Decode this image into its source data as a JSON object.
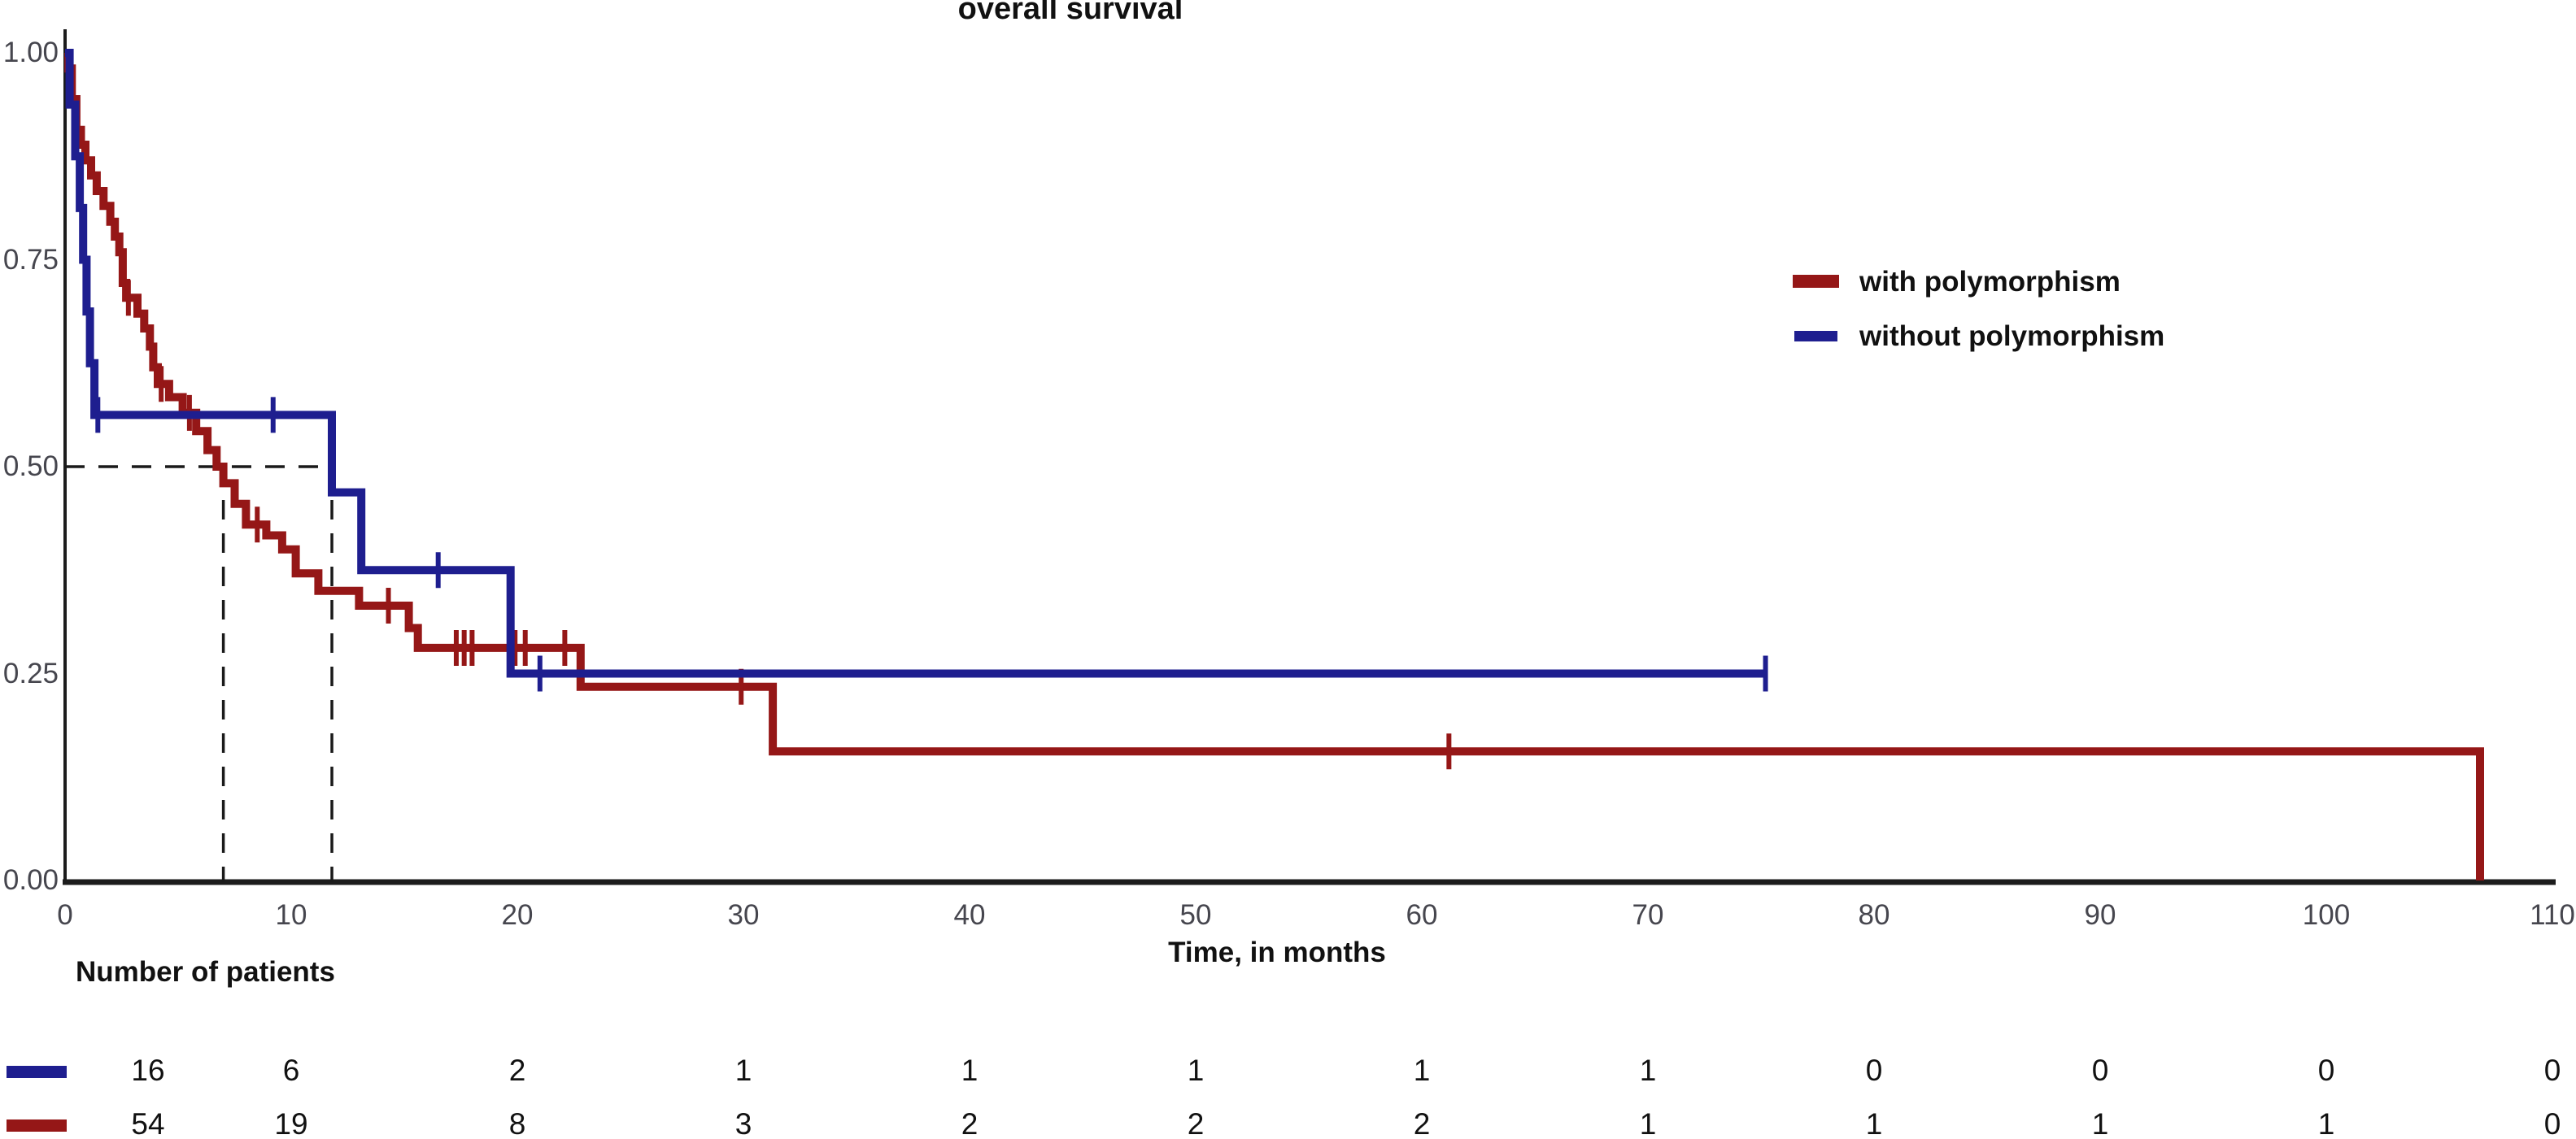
{
  "title": "overall survival",
  "axes": {
    "x_label": "Time, in months",
    "x_ticks": [
      0,
      10,
      20,
      30,
      40,
      50,
      60,
      70,
      80,
      90,
      100,
      110
    ],
    "y_ticks": [
      1.0,
      0.75,
      0.5,
      0.25,
      0.0
    ],
    "y_tick_labels": [
      "1.00",
      "0.75",
      "0.50",
      "0.25",
      "0.00"
    ],
    "xlim": [
      0,
      110
    ],
    "ylim": [
      0.0,
      1.0
    ]
  },
  "risk_table": {
    "header": "Number of patients",
    "times": [
      0,
      10,
      20,
      30,
      40,
      50,
      60,
      70,
      80,
      90,
      100,
      110
    ],
    "rows": [
      {
        "group": "without polymorphism",
        "color": "#1E1E8F",
        "counts": [
          16,
          6,
          2,
          1,
          1,
          1,
          1,
          1,
          0,
          0,
          0,
          0
        ]
      },
      {
        "group": "with polymorphism",
        "color": "#951717",
        "counts": [
          54,
          19,
          8,
          3,
          2,
          2,
          2,
          1,
          1,
          1,
          1,
          0
        ]
      }
    ]
  },
  "chart_data": {
    "type": "line",
    "subtype": "kaplan_meier_step",
    "title": "overall survival",
    "xlabel": "Time, in months",
    "ylabel": "",
    "xlim": [
      0,
      110
    ],
    "ylim": [
      0.0,
      1.0
    ],
    "grid": false,
    "legend_position": "right-upper",
    "median_guides": {
      "survival_level": 0.5,
      "median_with": 7.0,
      "median_without": 11.8,
      "dash_color": "#1a1a1a"
    },
    "series": [
      {
        "name": "with polymorphism",
        "color": "#951717",
        "n_at_start": 54,
        "end_time": 106.8,
        "steps": [
          [
            0,
            1.0
          ],
          [
            0.15,
            0.981
          ],
          [
            0.3,
            0.944
          ],
          [
            0.5,
            0.907
          ],
          [
            0.7,
            0.889
          ],
          [
            0.9,
            0.87
          ],
          [
            1.15,
            0.852
          ],
          [
            1.4,
            0.833
          ],
          [
            1.7,
            0.815
          ],
          [
            2.0,
            0.796
          ],
          [
            2.2,
            0.778
          ],
          [
            2.4,
            0.759
          ],
          [
            2.55,
            0.722
          ],
          [
            2.7,
            0.704
          ],
          [
            3.2,
            0.685
          ],
          [
            3.5,
            0.667
          ],
          [
            3.75,
            0.645
          ],
          [
            3.9,
            0.62
          ],
          [
            4.1,
            0.6
          ],
          [
            4.6,
            0.584
          ],
          [
            5.2,
            0.565
          ],
          [
            5.8,
            0.543
          ],
          [
            6.3,
            0.52
          ],
          [
            6.7,
            0.5
          ],
          [
            7.0,
            0.48
          ],
          [
            7.5,
            0.455
          ],
          [
            8.0,
            0.43
          ],
          [
            8.9,
            0.417
          ],
          [
            9.6,
            0.4
          ],
          [
            10.2,
            0.371
          ],
          [
            11.2,
            0.35
          ],
          [
            13.0,
            0.332
          ],
          [
            15.2,
            0.305
          ],
          [
            15.6,
            0.281
          ],
          [
            22.8,
            0.234
          ],
          [
            31.3,
            0.156
          ],
          [
            106.8,
            0.0
          ]
        ],
        "censor_marks": [
          [
            2.8,
            0.704
          ],
          [
            4.25,
            0.6
          ],
          [
            5.5,
            0.565
          ],
          [
            8.5,
            0.43
          ],
          [
            14.3,
            0.332
          ],
          [
            17.3,
            0.281
          ],
          [
            17.65,
            0.281
          ],
          [
            18.0,
            0.281
          ],
          [
            19.9,
            0.281
          ],
          [
            20.35,
            0.281
          ],
          [
            22.1,
            0.281
          ],
          [
            29.9,
            0.234
          ],
          [
            61.2,
            0.156
          ]
        ]
      },
      {
        "name": "without polymorphism",
        "color": "#1E1E8F",
        "n_at_start": 16,
        "end_time": 75.2,
        "steps": [
          [
            0,
            1.0
          ],
          [
            0.2,
            0.9375
          ],
          [
            0.45,
            0.875
          ],
          [
            0.65,
            0.8125
          ],
          [
            0.8,
            0.75
          ],
          [
            0.95,
            0.6875
          ],
          [
            1.1,
            0.625
          ],
          [
            1.3,
            0.5625
          ],
          [
            11.8,
            0.469
          ],
          [
            13.1,
            0.375
          ],
          [
            19.7,
            0.25
          ]
        ],
        "censor_marks": [
          [
            1.45,
            0.5625
          ],
          [
            9.2,
            0.5625
          ],
          [
            16.5,
            0.375
          ],
          [
            21.0,
            0.25
          ],
          [
            75.2,
            0.25
          ]
        ]
      }
    ]
  }
}
